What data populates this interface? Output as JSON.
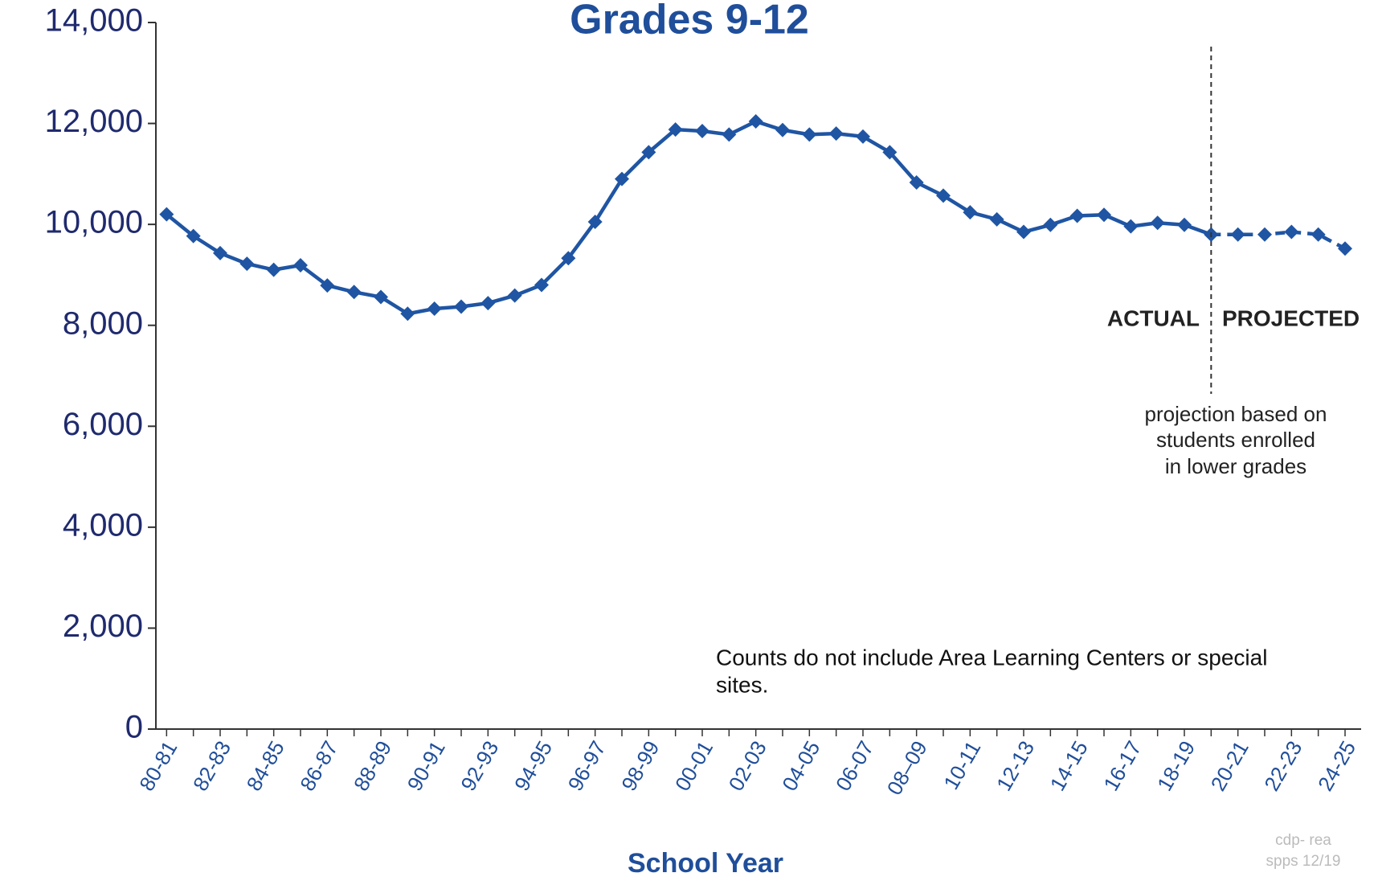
{
  "chart_data": {
    "type": "line",
    "title": "Grades 9-12",
    "x_label": "School Year",
    "categories": [
      "80-81",
      null,
      "82-83",
      null,
      "84-85",
      null,
      "86-87",
      null,
      "88-89",
      null,
      "90-91",
      null,
      "92-93",
      null,
      "94-95",
      null,
      "96-97",
      null,
      "98-99",
      null,
      "00-01",
      null,
      "02-03",
      null,
      "04-05",
      null,
      "06-07",
      null,
      "08–09",
      null,
      "10-11",
      null,
      "12-13",
      null,
      "14-15",
      null,
      "16-17",
      null,
      "18-19",
      null,
      "20-21",
      null,
      "22-23",
      null,
      "24-25"
    ],
    "series": [
      {
        "color": "#1f55a3",
        "dashed": false,
        "values": [
          10200,
          9770,
          9430,
          9220,
          9100,
          9190,
          8790,
          8660,
          8560,
          8230,
          8330,
          8370,
          8440,
          8590,
          8800,
          9330,
          10050,
          10900,
          11430,
          11880,
          11850,
          11780,
          12040,
          11870,
          11780,
          11800,
          11740,
          11430,
          10830,
          10570,
          10240,
          10100,
          9850,
          9990,
          10170,
          10190,
          9960,
          10030,
          9990,
          9800,
          null,
          null,
          null,
          null,
          null
        ]
      },
      {
        "color": "#1f55a3",
        "dashed": true,
        "values": [
          null,
          null,
          null,
          null,
          null,
          null,
          null,
          null,
          null,
          null,
          null,
          null,
          null,
          null,
          null,
          null,
          null,
          null,
          null,
          null,
          null,
          null,
          null,
          null,
          null,
          null,
          null,
          null,
          null,
          null,
          null,
          null,
          null,
          null,
          null,
          null,
          null,
          null,
          null,
          9800,
          9800,
          9800,
          9850,
          9800,
          9520
        ]
      }
    ],
    "ylim": [
      0,
      14000
    ],
    "yticks": [
      0,
      {
        "value": 2000,
        "label": "2,000"
      },
      {
        "value": 4000,
        "label": "4,000"
      },
      {
        "value": 6000,
        "label": "6,000"
      },
      {
        "value": 8000,
        "label": "8,000"
      },
      {
        "value": 10000,
        "label": "10,000"
      },
      {
        "value": 12000,
        "label": "12,000"
      },
      {
        "value": 14000,
        "label": "14,000"
      }
    ],
    "grid": false,
    "annotations": {
      "actual": "ACTUAL",
      "projected": "PROJECTED",
      "projection_note": [
        "projection based on",
        "students enrolled",
        "in lower grades"
      ],
      "counts_note": [
        "Counts do not include Area Learning Centers or special",
        "sites."
      ],
      "watermark": [
        "cdp- rea",
        "spps 12/19"
      ]
    }
  }
}
